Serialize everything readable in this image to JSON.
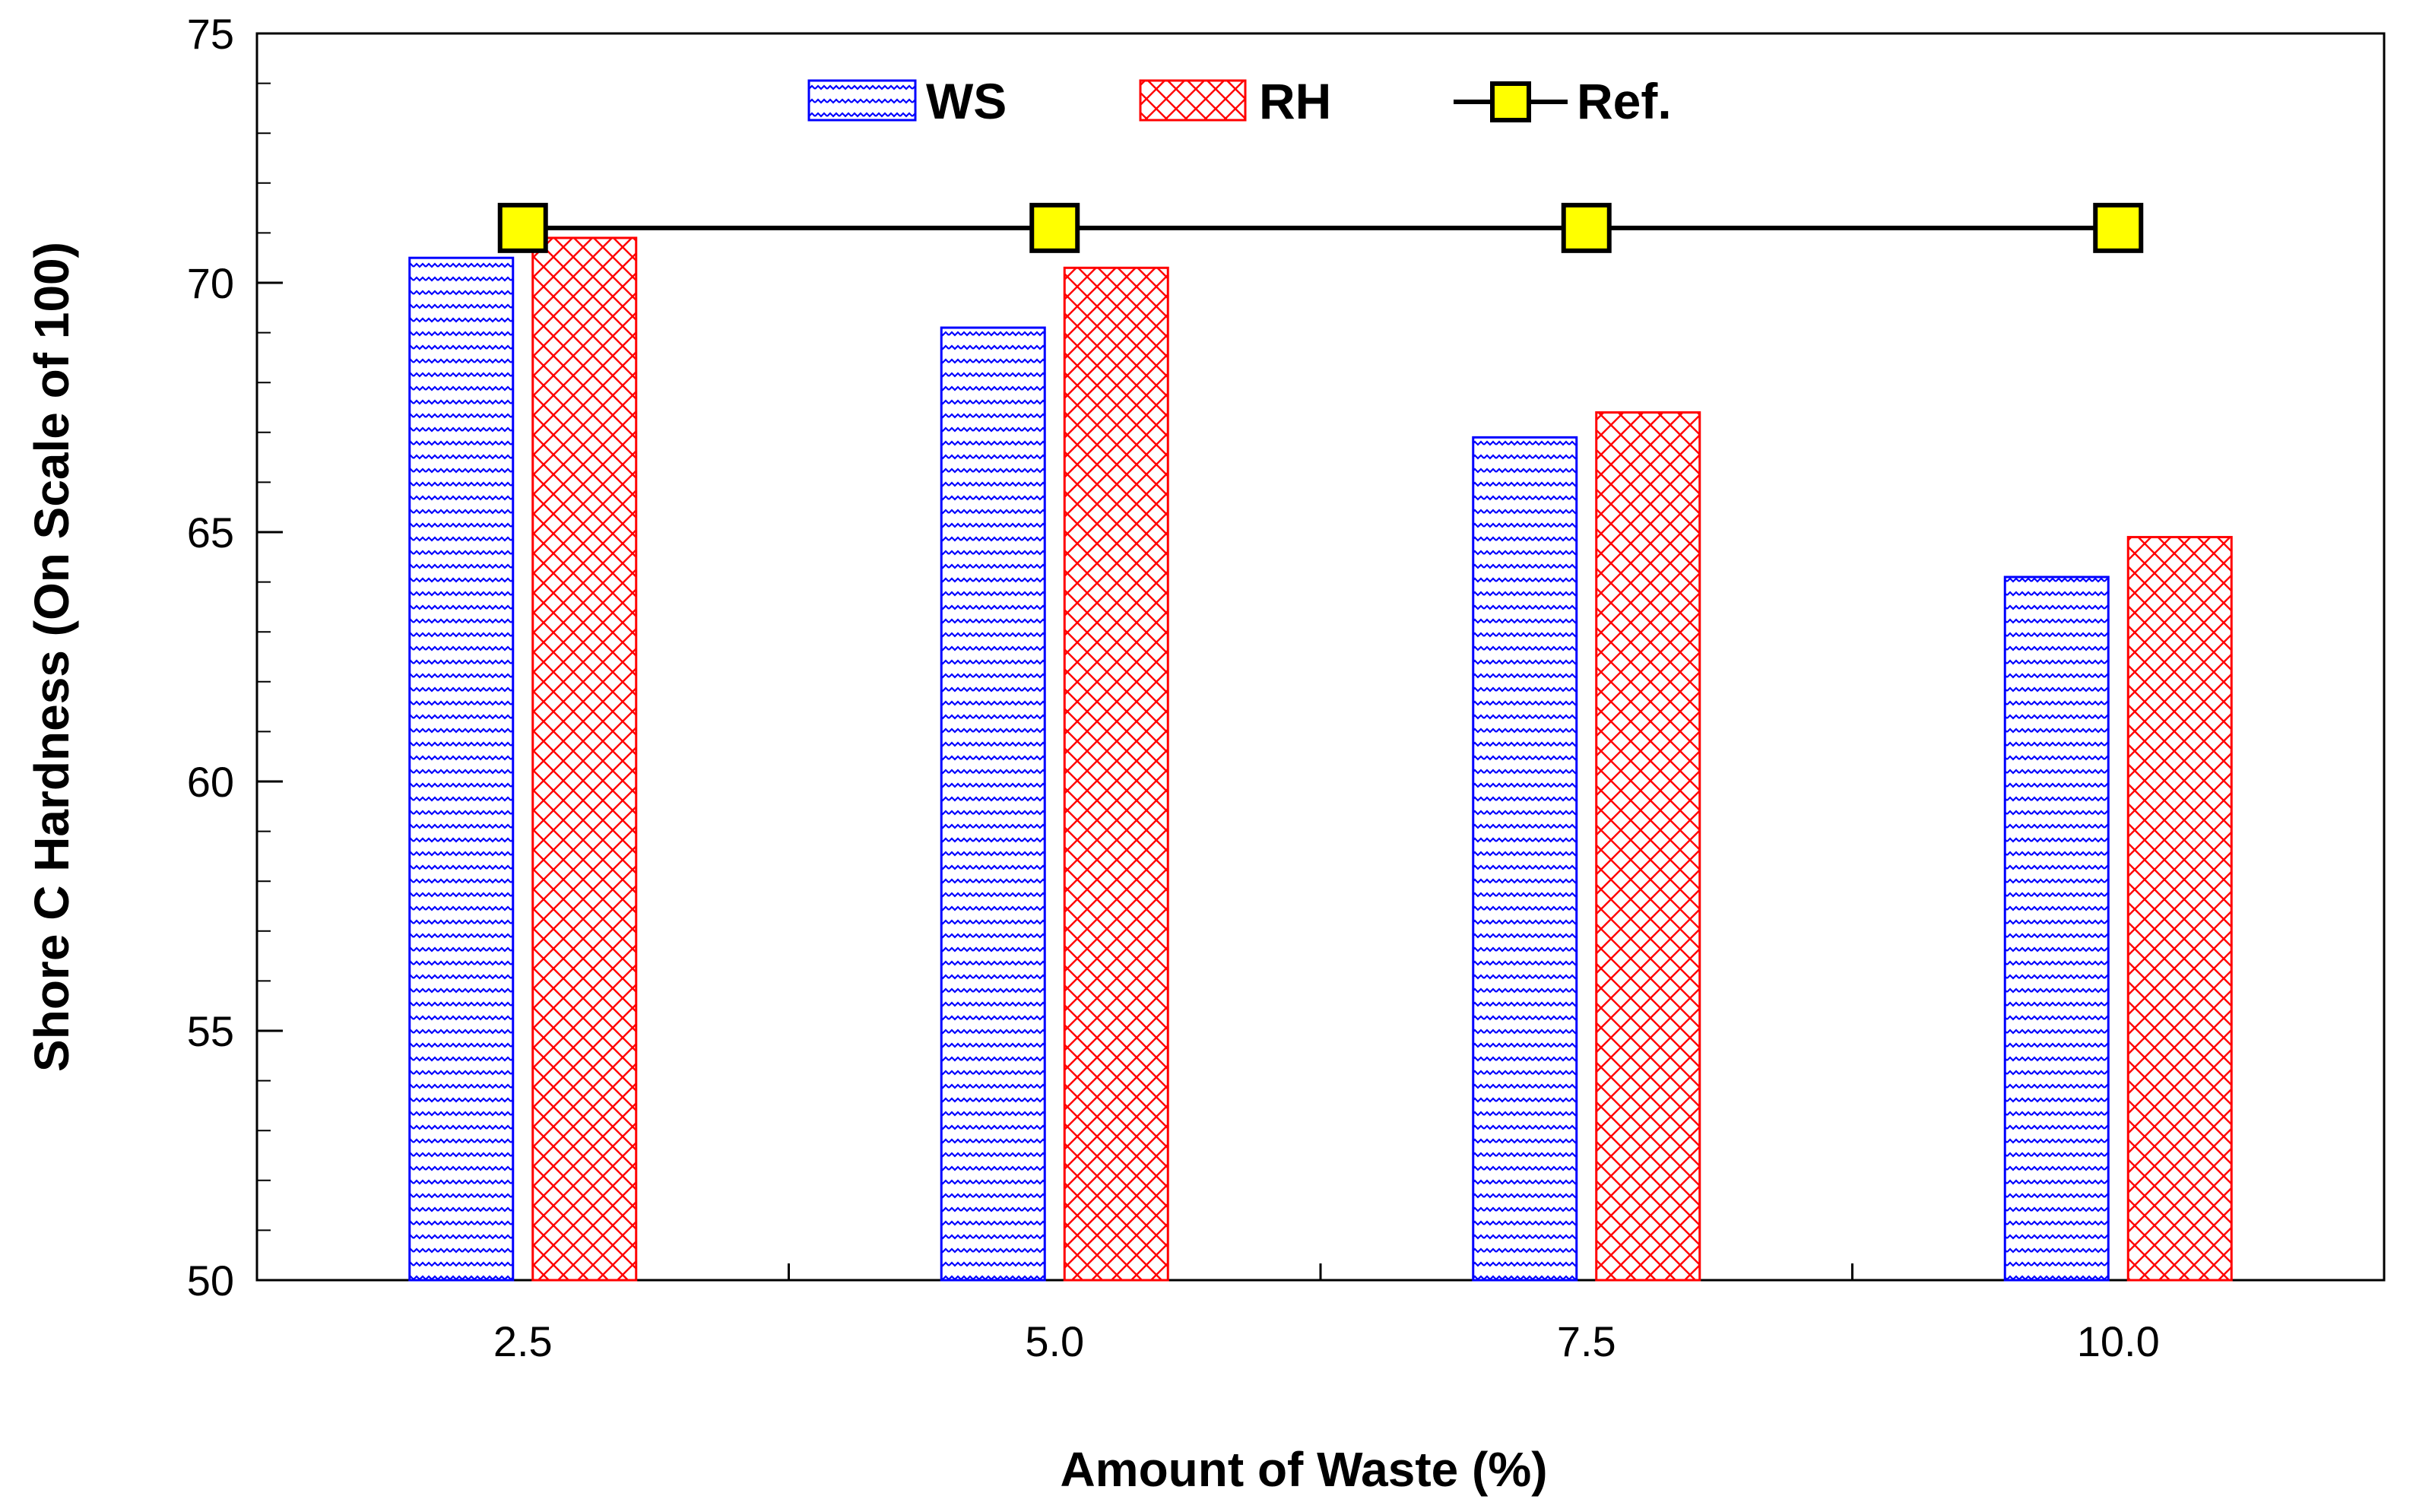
{
  "chart_data": {
    "type": "bar",
    "title": "",
    "xlabel": "Amount of Waste (%)",
    "ylabel": "Shore C Hardness (On Scale of 100)",
    "categories": [
      "2.5",
      "5.0",
      "7.5",
      "10.0"
    ],
    "ylim": [
      50,
      75
    ],
    "yticks": [
      "50",
      "55",
      "60",
      "65",
      "70",
      "75"
    ],
    "grid": false,
    "legend_position": "top-center",
    "series": [
      {
        "name": "WS",
        "kind": "bar",
        "pattern": "zigzag",
        "color": "#0000ff",
        "values": [
          70.5,
          69.1,
          66.9,
          64.1
        ]
      },
      {
        "name": "RH",
        "kind": "bar",
        "pattern": "crosshatch",
        "color": "#ff0000",
        "values": [
          70.9,
          70.3,
          67.4,
          64.9
        ]
      },
      {
        "name": "Ref.",
        "kind": "line",
        "marker": "square",
        "color": "#000000",
        "marker_color": "#ffff00",
        "values": [
          71.1,
          71.1,
          71.1,
          71.1
        ]
      }
    ]
  }
}
